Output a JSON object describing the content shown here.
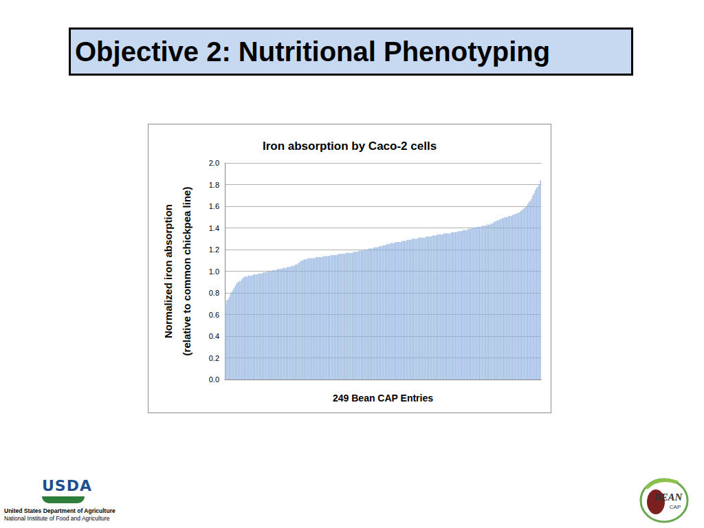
{
  "slide": {
    "heading": "Objective 2: Nutritional Phenotyping",
    "usda_mark": "USDA",
    "agency": [
      "United States Department of Agriculture",
      "National Institute of Food and Agriculture"
    ],
    "logo": [
      "BEAN",
      "CAP"
    ]
  },
  "chart_data": {
    "type": "bar",
    "title": "Iron absorption by Caco-2 cells",
    "x_label": "249 Bean CAP Entries",
    "y_label": "Normalized iron absorption\n(relative to common chickpea line)",
    "color": "#8eb0de",
    "categories": [
      null,
      null,
      null,
      null,
      null,
      null,
      null,
      null,
      null,
      null,
      null,
      null,
      null,
      null,
      null,
      null,
      null,
      null,
      null,
      null,
      null,
      null,
      null,
      null,
      null,
      null,
      null,
      null,
      null,
      null,
      null,
      null,
      null,
      null,
      null,
      null,
      null,
      null,
      null,
      null,
      null,
      null,
      null,
      null,
      null,
      null,
      null,
      null,
      null,
      null,
      null,
      null,
      null,
      null,
      null,
      null,
      null,
      null,
      null,
      null,
      null,
      null,
      null,
      null,
      null,
      null,
      null,
      null,
      null,
      null,
      null,
      null,
      null,
      null,
      null,
      null,
      null,
      null,
      null,
      null,
      null,
      null,
      null,
      null,
      null,
      null,
      null,
      null,
      null,
      null,
      null,
      null,
      null,
      null,
      null,
      null,
      null,
      null,
      null,
      null,
      null,
      null,
      null,
      null,
      null,
      null,
      null,
      null,
      null,
      null,
      null,
      null,
      null,
      null,
      null,
      null,
      null,
      null,
      null,
      null,
      null,
      null,
      null,
      null,
      null,
      null,
      null,
      null,
      null,
      null,
      null,
      null,
      null,
      null,
      null,
      null,
      null,
      null,
      null,
      null,
      null,
      null,
      null,
      null,
      null,
      null,
      null,
      null,
      null,
      null,
      null,
      null,
      null,
      null,
      null,
      null,
      null,
      null,
      null,
      null,
      null,
      null,
      null,
      null,
      null,
      null,
      null,
      null,
      null,
      null,
      null,
      null,
      null,
      null,
      null,
      null,
      null,
      null,
      null,
      null,
      null,
      null,
      null,
      null,
      null,
      null,
      null,
      null,
      null,
      null,
      null,
      null,
      null,
      null,
      null,
      null,
      null,
      null,
      null,
      null,
      null,
      null,
      null,
      null,
      null,
      null,
      null,
      null,
      null,
      null,
      null,
      null,
      null,
      null,
      null,
      null,
      null,
      null,
      null,
      null,
      null,
      null,
      null,
      null,
      null,
      null,
      null,
      null,
      null,
      null,
      null,
      null,
      null,
      null,
      null,
      null,
      null,
      null,
      null,
      null,
      null,
      null,
      null,
      null,
      null,
      null,
      null,
      null,
      null
    ],
    "values": [
      0.7,
      0.73,
      0.74,
      0.76,
      0.79,
      0.81,
      0.83,
      0.85,
      0.87,
      0.89,
      0.9,
      0.91,
      0.91,
      0.93,
      0.94,
      0.95,
      0.95,
      0.95,
      0.96,
      0.96,
      0.96,
      0.96,
      0.97,
      0.97,
      0.97,
      0.97,
      0.98,
      0.98,
      0.98,
      0.98,
      0.99,
      0.99,
      0.99,
      1.0,
      1.0,
      1.0,
      1.0,
      1.01,
      1.01,
      1.01,
      1.01,
      1.02,
      1.02,
      1.02,
      1.02,
      1.03,
      1.03,
      1.03,
      1.03,
      1.04,
      1.04,
      1.04,
      1.05,
      1.05,
      1.05,
      1.06,
      1.06,
      1.07,
      1.08,
      1.09,
      1.1,
      1.1,
      1.11,
      1.11,
      1.11,
      1.12,
      1.12,
      1.12,
      1.12,
      1.12,
      1.12,
      1.13,
      1.13,
      1.13,
      1.13,
      1.13,
      1.13,
      1.14,
      1.14,
      1.14,
      1.14,
      1.14,
      1.14,
      1.15,
      1.15,
      1.15,
      1.15,
      1.15,
      1.15,
      1.16,
      1.16,
      1.16,
      1.16,
      1.16,
      1.16,
      1.17,
      1.17,
      1.17,
      1.17,
      1.17,
      1.17,
      1.18,
      1.18,
      1.18,
      1.18,
      1.19,
      1.19,
      1.19,
      1.19,
      1.2,
      1.2,
      1.2,
      1.2,
      1.21,
      1.21,
      1.21,
      1.21,
      1.22,
      1.22,
      1.22,
      1.22,
      1.23,
      1.23,
      1.23,
      1.24,
      1.24,
      1.24,
      1.25,
      1.25,
      1.25,
      1.26,
      1.26,
      1.26,
      1.26,
      1.27,
      1.27,
      1.27,
      1.27,
      1.27,
      1.28,
      1.28,
      1.28,
      1.28,
      1.29,
      1.29,
      1.29,
      1.29,
      1.3,
      1.3,
      1.3,
      1.3,
      1.3,
      1.31,
      1.31,
      1.31,
      1.31,
      1.31,
      1.31,
      1.32,
      1.32,
      1.32,
      1.32,
      1.32,
      1.33,
      1.33,
      1.33,
      1.33,
      1.34,
      1.34,
      1.34,
      1.34,
      1.34,
      1.35,
      1.35,
      1.35,
      1.35,
      1.35,
      1.35,
      1.36,
      1.36,
      1.36,
      1.36,
      1.36,
      1.37,
      1.37,
      1.37,
      1.37,
      1.38,
      1.38,
      1.38,
      1.38,
      1.39,
      1.39,
      1.39,
      1.4,
      1.4,
      1.4,
      1.4,
      1.41,
      1.41,
      1.41,
      1.41,
      1.42,
      1.42,
      1.42,
      1.42,
      1.43,
      1.43,
      1.43,
      1.44,
      1.44,
      1.45,
      1.46,
      1.46,
      1.47,
      1.47,
      1.48,
      1.48,
      1.49,
      1.49,
      1.5,
      1.5,
      1.5,
      1.51,
      1.51,
      1.51,
      1.52,
      1.52,
      1.53,
      1.53,
      1.54,
      1.54,
      1.55,
      1.56,
      1.57,
      1.58,
      1.59,
      1.6,
      1.62,
      1.64,
      1.65,
      1.67,
      1.7,
      1.72,
      1.75,
      1.77,
      1.78,
      1.8,
      1.84
    ],
    "ylim": [
      0,
      2
    ],
    "yticks": [
      {
        "value": 0,
        "label": "0.0"
      },
      {
        "value": 0.2,
        "label": "0.2"
      },
      {
        "value": 0.4,
        "label": "0.4"
      },
      {
        "value": 0.6,
        "label": "0.6"
      },
      {
        "value": 0.8,
        "label": "0.8"
      },
      {
        "value": 1,
        "label": "1.0"
      },
      {
        "value": 1.2,
        "label": "1.2"
      },
      {
        "value": 1.4,
        "label": "1.4"
      },
      {
        "value": 1.6,
        "label": "1.6"
      },
      {
        "value": 1.8,
        "label": "1.8"
      },
      {
        "value": 2,
        "label": "2.0"
      }
    ],
    "grid": true,
    "tick_labels": "y"
  }
}
